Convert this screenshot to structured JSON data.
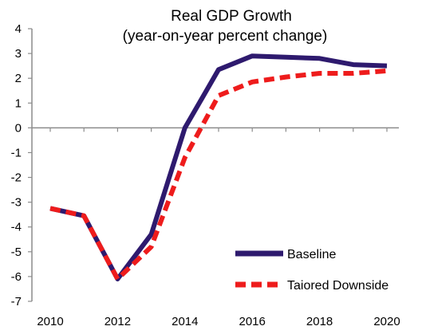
{
  "chart_data": {
    "type": "line",
    "title": "Real GDP Growth",
    "subtitle": "(year-on-year percent change)",
    "xlabel": "",
    "ylabel": "",
    "x": [
      2010,
      2011,
      2012,
      2013,
      2014,
      2015,
      2016,
      2017,
      2018,
      2019,
      2020
    ],
    "xlim": [
      2010,
      2020
    ],
    "ylim": [
      -7,
      4
    ],
    "x_tick_labels": [
      "2010",
      "2012",
      "2014",
      "2016",
      "2018",
      "2020"
    ],
    "y_tick_labels": [
      "4",
      "3",
      "2",
      "1",
      "0",
      "-1",
      "-2",
      "-3",
      "-4",
      "-5",
      "-6",
      "-7"
    ],
    "grid": false,
    "legend_position": "bottom-right",
    "series": [
      {
        "name": "Baseline",
        "color": "#2e1a6e",
        "style": "solid",
        "values": [
          -3.25,
          -3.55,
          -6.1,
          -4.3,
          0.0,
          2.35,
          2.9,
          2.85,
          2.8,
          2.55,
          2.5
        ]
      },
      {
        "name": "Taiored Downside",
        "color": "#ee1c1c",
        "style": "dashed",
        "values": [
          -3.25,
          -3.55,
          -6.1,
          -4.8,
          -1.2,
          1.3,
          1.85,
          2.05,
          2.2,
          2.2,
          2.3
        ]
      }
    ]
  }
}
